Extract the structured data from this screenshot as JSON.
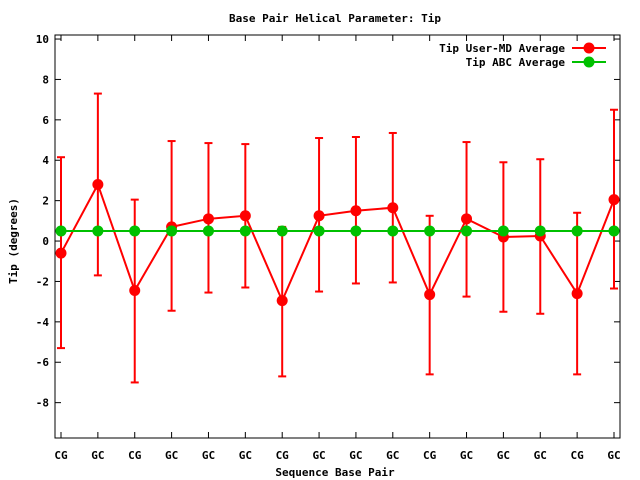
{
  "chart_data": {
    "type": "line",
    "title": "Base Pair Helical Parameter: Tip",
    "xlabel": "Sequence Base Pair",
    "ylabel": "Tip (degrees)",
    "categories": [
      "CG",
      "GC",
      "CG",
      "GC",
      "GC",
      "GC",
      "CG",
      "GC",
      "GC",
      "GC",
      "CG",
      "GC",
      "GC",
      "GC",
      "CG",
      "GC"
    ],
    "ylim": [
      -10,
      10
    ],
    "yticks": [
      -8,
      -6,
      -4,
      -2,
      0,
      2,
      4,
      6,
      8,
      10
    ],
    "ytick_labels": [
      "-8",
      "-6",
      "-4",
      "-2",
      "0",
      "2",
      "4",
      "6",
      "8",
      "10"
    ],
    "grid": false,
    "legend_position": "top-right",
    "series": [
      {
        "name": "Tip User-MD Average",
        "color": "#ff0000",
        "values": [
          -0.6,
          2.8,
          -2.45,
          0.7,
          1.1,
          1.25,
          -2.95,
          1.25,
          1.5,
          1.65,
          -2.65,
          1.1,
          0.2,
          0.25,
          -2.6,
          2.05
        ],
        "error_low": [
          -5.3,
          -1.7,
          -7.0,
          -3.45,
          -2.55,
          -2.3,
          -6.7,
          -2.5,
          -2.1,
          -2.05,
          -6.6,
          -2.75,
          -3.5,
          -3.6,
          -6.6,
          -2.35
        ],
        "error_high": [
          4.15,
          7.3,
          2.05,
          4.95,
          4.85,
          4.8,
          0.7,
          5.1,
          5.15,
          5.35,
          1.25,
          4.9,
          3.9,
          4.05,
          1.4,
          6.5
        ]
      },
      {
        "name": "Tip ABC Average",
        "color": "#00c000",
        "values": [
          0.5,
          0.5,
          0.5,
          0.5,
          0.5,
          0.5,
          0.5,
          0.5,
          0.5,
          0.5,
          0.5,
          0.5,
          0.5,
          0.5,
          0.5,
          0.5
        ]
      }
    ]
  }
}
